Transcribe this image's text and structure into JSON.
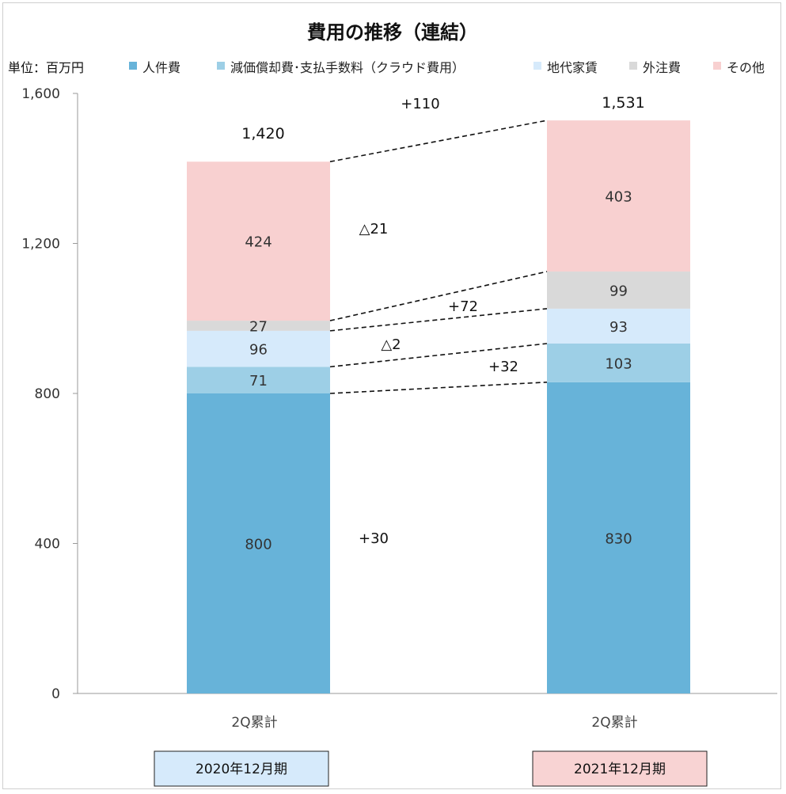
{
  "chart_data": {
    "type": "bar",
    "stacked": true,
    "title": "費用の推移（連結）",
    "unit_label": "単位：百万円",
    "categories": [
      "2Q累計",
      "2Q累計"
    ],
    "periods": [
      "2020年12月期",
      "2021年12月期"
    ],
    "period_colors": [
      "#d6eafb",
      "#f8d3d3"
    ],
    "ylim": [
      0,
      1600
    ],
    "yticks": [
      0,
      400,
      800,
      1200,
      1600
    ],
    "ytick_labels": [
      "0",
      "400",
      "800",
      "1,200",
      "1,600"
    ],
    "series": [
      {
        "name": "人件費",
        "values": [
          800,
          830
        ],
        "labels": [
          "800",
          "830"
        ],
        "color": "#67b3d9"
      },
      {
        "name": "減価償却費･支払手数料（クラウド費用）",
        "values": [
          71,
          103
        ],
        "labels": [
          "71",
          "103"
        ],
        "color": "#9dcfe6"
      },
      {
        "name": "地代家賃",
        "values": [
          96,
          93
        ],
        "labels": [
          "96",
          "93"
        ],
        "color": "#d6eafb"
      },
      {
        "name": "外注費",
        "values": [
          27,
          99
        ],
        "labels": [
          "27",
          "99"
        ],
        "color": "#d9d9d9"
      },
      {
        "name": "その他",
        "values": [
          424,
          403
        ],
        "labels": [
          "424",
          "403"
        ],
        "color": "#f8d0d0"
      }
    ],
    "totals": [
      "1,420",
      "1,531"
    ],
    "total_values": [
      1420,
      1531
    ],
    "deltas": [
      {
        "label": "+30",
        "value": 30
      },
      {
        "label": "+32",
        "value": 32
      },
      {
        "label": "△2",
        "value": -2
      },
      {
        "label": "+72",
        "value": 72
      },
      {
        "label": "△21",
        "value": -21
      },
      {
        "label": "+110",
        "value": 110
      }
    ],
    "legend_placement": "top",
    "grid": false
  }
}
